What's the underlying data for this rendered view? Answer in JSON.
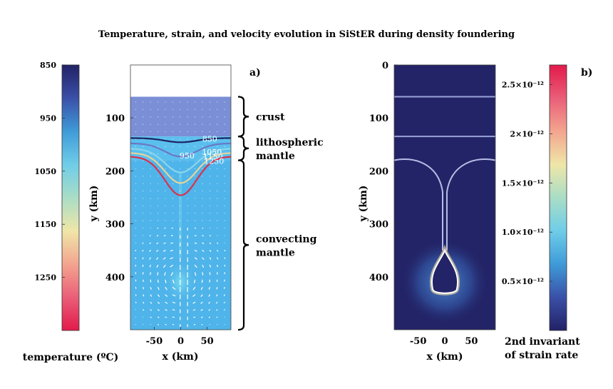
{
  "figure": {
    "title": "Temperature, strain, and velocity evolution in SiStER during density foundering"
  },
  "chart_data": [
    {
      "panel": "a)",
      "type": "heatmap",
      "xlabel": "x (km)",
      "ylabel": "y (km)",
      "xlim": [
        -95,
        95
      ],
      "ylim": [
        500,
        0
      ],
      "x_ticks": [
        -50,
        0,
        50
      ],
      "x_tick_labels": [
        "-50",
        "0",
        "50"
      ],
      "y_ticks": [
        100,
        200,
        300,
        400
      ],
      "y_tick_labels": [
        "100",
        "200",
        "300",
        "400"
      ],
      "colorbar": {
        "label": "temperature (ºC)",
        "range": [
          850,
          1350
        ],
        "ticks": [
          850,
          950,
          1050,
          1150,
          1250
        ],
        "tick_labels": [
          "850",
          "950",
          "1050",
          "1150",
          "1250"
        ],
        "stops": [
          "#222266",
          "#3a50a8",
          "#3f9bd8",
          "#6fcde8",
          "#a9ddc6",
          "#efe6a8",
          "#f3a58f",
          "#ea5e78",
          "#e21a4a"
        ]
      },
      "layers": [
        {
          "name": "crust",
          "top": 60,
          "bottom": 135,
          "color": "#7b8fd6"
        },
        {
          "name": "lithospheric mantle",
          "top": 135,
          "bottom": 180,
          "color": "#5bbfee"
        },
        {
          "name": "convecting mantle",
          "top": 180,
          "bottom": 500,
          "color": "#4fb4ea"
        }
      ],
      "isotherms": [
        {
          "label": "850",
          "color": "#1d2260",
          "base_depth": 138,
          "sag": 8
        },
        {
          "label": "950",
          "color": "#6a79c6",
          "base_depth": 148,
          "sag": 25
        },
        {
          "label": "1050",
          "color": "#8ad6ea",
          "base_depth": 158,
          "sag": 45
        },
        {
          "label": "1150",
          "color": "#e2d49b",
          "base_depth": 166,
          "sag": 57
        },
        {
          "label": "1250",
          "color": "#d8324e",
          "base_depth": 173,
          "sag": 73
        }
      ],
      "annotations": [
        {
          "label": "crust",
          "y_top": 60,
          "y_bottom": 135
        },
        {
          "label_lines": [
            "lithospheric",
            "mantle"
          ],
          "y_top": 135,
          "y_bottom": 180
        },
        {
          "label_lines": [
            "convecting",
            "mantle"
          ],
          "y_top": 180,
          "y_bottom": 500
        }
      ]
    },
    {
      "panel": "b)",
      "type": "heatmap",
      "xlabel": "x (km)",
      "ylabel": "y (km)",
      "xlim": [
        -95,
        95
      ],
      "ylim": [
        500,
        0
      ],
      "x_ticks": [
        -50,
        0,
        50
      ],
      "x_tick_labels": [
        "-50",
        "0",
        "50"
      ],
      "y_ticks": [
        0,
        100,
        200,
        300,
        400
      ],
      "y_tick_labels": [
        "0",
        "100",
        "200",
        "300",
        "400"
      ],
      "layer_boundaries": [
        60,
        135,
        180
      ],
      "drip": {
        "tip_depth": 440,
        "head_top": 350,
        "head_width": 45
      },
      "colorbar": {
        "label_lines": [
          "2nd invariant",
          "of strain rate"
        ],
        "range": [
          0,
          2.7e-12
        ],
        "ticks": [
          5e-13,
          1e-12,
          1.5e-12,
          2e-12,
          2.5e-12
        ],
        "tick_labels": [
          "0.5×10⁻¹²",
          "1.0×10⁻¹²",
          "1.5×10⁻¹²",
          "2×10⁻¹²",
          "2.5×10⁻¹²"
        ],
        "stops": [
          "#222266",
          "#3a50a8",
          "#3f9bd8",
          "#6fcde8",
          "#a9ddc6",
          "#efe6a8",
          "#f3a58f",
          "#ea5e78",
          "#e21a4a"
        ]
      }
    }
  ]
}
